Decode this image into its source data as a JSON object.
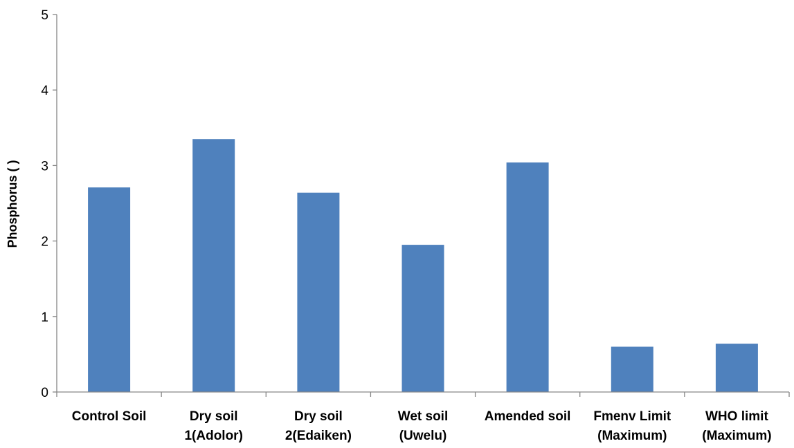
{
  "chart_data": {
    "type": "bar",
    "categories": [
      [
        "Control Soil"
      ],
      [
        "Dry soil",
        "1(Adolor)"
      ],
      [
        "Dry soil",
        "2(Edaiken)"
      ],
      [
        "Wet soil",
        "(Uwelu)"
      ],
      [
        "Amended soil"
      ],
      [
        "Fmenv Limit",
        "(Maximum)"
      ],
      [
        "WHO limit",
        "(Maximum)"
      ]
    ],
    "values": [
      2.71,
      3.35,
      2.64,
      1.95,
      3.04,
      0.6,
      0.64
    ],
    "title": "",
    "xlabel": "",
    "ylabel": "Phosphorus ( )",
    "ylim": [
      0,
      5
    ],
    "yticks": [
      0,
      1,
      2,
      3,
      4,
      5
    ],
    "grid": false,
    "legend": "none",
    "bar_color": "#4f81bd",
    "axis_color": "#868686"
  }
}
